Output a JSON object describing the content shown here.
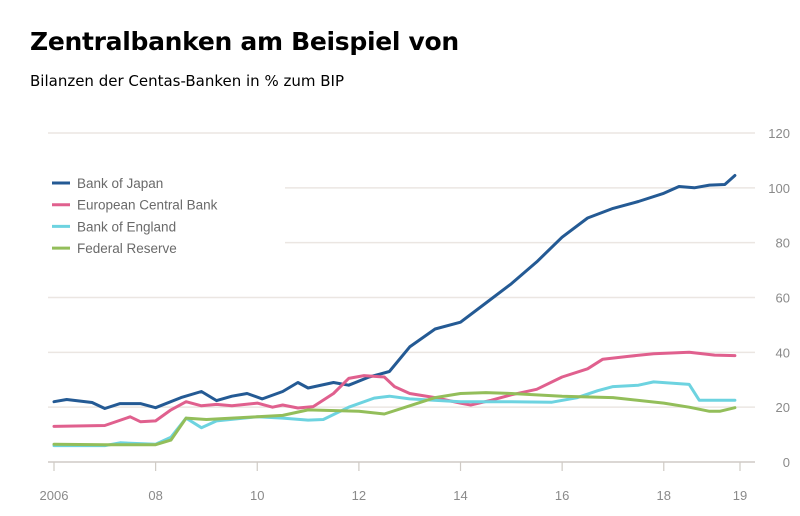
{
  "chart_data": {
    "type": "line",
    "title": "Zentralbanken am Beispiel von",
    "subtitle": "Bilanzen der Centas-Banken in % zum BIP",
    "xlabel": "",
    "ylabel": "",
    "xlim": [
      2006,
      2019.5
    ],
    "ylim": [
      0,
      120
    ],
    "grid": true,
    "legend": "top-left",
    "y_axis_side": "right",
    "x_ticks": [
      {
        "value": 2006,
        "label": "2006"
      },
      {
        "value": 2008,
        "label": "08"
      },
      {
        "value": 2010,
        "label": "10"
      },
      {
        "value": 2012,
        "label": "12"
      },
      {
        "value": 2014,
        "label": "14"
      },
      {
        "value": 2016,
        "label": "16"
      },
      {
        "value": 2018,
        "label": "18"
      },
      {
        "value": 2019.5,
        "label": "19"
      }
    ],
    "y_ticks": [
      {
        "value": 0,
        "label": "0"
      },
      {
        "value": 20,
        "label": "20"
      },
      {
        "value": 40,
        "label": "40"
      },
      {
        "value": 60,
        "label": "60"
      },
      {
        "value": 80,
        "label": "80"
      },
      {
        "value": 100,
        "label": "100"
      },
      {
        "value": 120,
        "label": "120"
      }
    ],
    "series": [
      {
        "name": "Bank of Japan",
        "color": "#245a94",
        "x": [
          2006,
          2006.25,
          2006.75,
          2007,
          2007.3,
          2007.7,
          2008,
          2008.5,
          2008.9,
          2009.2,
          2009.5,
          2009.8,
          2010.1,
          2010.5,
          2010.8,
          2011,
          2011.5,
          2011.8,
          2012.2,
          2012.6,
          2013,
          2013.5,
          2014,
          2014.5,
          2015,
          2015.5,
          2016,
          2016.5,
          2017,
          2017.5,
          2018,
          2018.3,
          2018.6,
          2018.9,
          2019.2,
          2019.4
        ],
        "y": [
          22,
          22.8,
          21.7,
          19.5,
          21.3,
          21.3,
          19.8,
          23.5,
          25.7,
          22.4,
          24,
          25,
          23,
          25.7,
          29,
          27,
          29,
          28,
          31,
          33,
          42,
          48.5,
          51,
          58,
          65,
          73,
          82,
          89,
          92.5,
          95,
          98,
          100.5,
          100,
          101,
          101.2,
          104.5
        ]
      },
      {
        "name": "European Central Bank",
        "color": "#e0608e",
        "x": [
          2006,
          2007,
          2007.5,
          2007.7,
          2008,
          2008.3,
          2008.6,
          2008.9,
          2009.2,
          2009.5,
          2010,
          2010.3,
          2010.5,
          2010.8,
          2011.1,
          2011.5,
          2011.8,
          2012.1,
          2012.5,
          2012.7,
          2013,
          2013.5,
          2014,
          2014.2,
          2014.6,
          2015,
          2015.5,
          2016,
          2016.5,
          2016.8,
          2017.3,
          2017.8,
          2018.5,
          2019,
          2019.4
        ],
        "y": [
          13,
          13.3,
          16.5,
          14.7,
          15,
          19,
          22,
          20.5,
          21,
          20.5,
          21.5,
          20,
          20.8,
          19.7,
          20.2,
          25,
          30.5,
          31.5,
          31,
          27.5,
          25,
          23.5,
          21.5,
          20.8,
          22.5,
          24.5,
          26.5,
          31,
          34,
          37.5,
          38.5,
          39.5,
          40,
          39,
          38.8
        ]
      },
      {
        "name": "Bank of England",
        "color": "#6dd3e0",
        "x": [
          2006,
          2007,
          2007.3,
          2008,
          2008.3,
          2008.6,
          2008.9,
          2009.2,
          2010,
          2010.5,
          2011,
          2011.3,
          2011.8,
          2012.3,
          2012.6,
          2013,
          2014,
          2015,
          2015.8,
          2016.3,
          2016.7,
          2017,
          2017.5,
          2017.8,
          2018.5,
          2018.7,
          2019,
          2019.4
        ],
        "y": [
          6,
          6,
          7,
          6.5,
          9,
          16,
          12.5,
          15,
          16.5,
          16,
          15.3,
          15.5,
          20,
          23.3,
          24,
          23,
          22,
          22,
          21.8,
          23.5,
          26,
          27.5,
          28,
          29.2,
          28.3,
          22.5,
          22.5,
          22.5
        ]
      },
      {
        "name": "Federal Reserve",
        "color": "#93be5a",
        "x": [
          2006,
          2007,
          2008,
          2008.3,
          2008.6,
          2009,
          2010,
          2010.5,
          2011,
          2012,
          2012.5,
          2013,
          2013.5,
          2014,
          2014.5,
          2015,
          2016,
          2017,
          2018,
          2018.5,
          2018.9,
          2019.1,
          2019.4
        ],
        "y": [
          6.5,
          6.3,
          6.3,
          8,
          16,
          15.5,
          16.5,
          17,
          19,
          18.5,
          17.5,
          20.5,
          23.5,
          25,
          25.3,
          25,
          24,
          23.5,
          21.5,
          20,
          18.5,
          18.5,
          19.8
        ]
      }
    ]
  }
}
